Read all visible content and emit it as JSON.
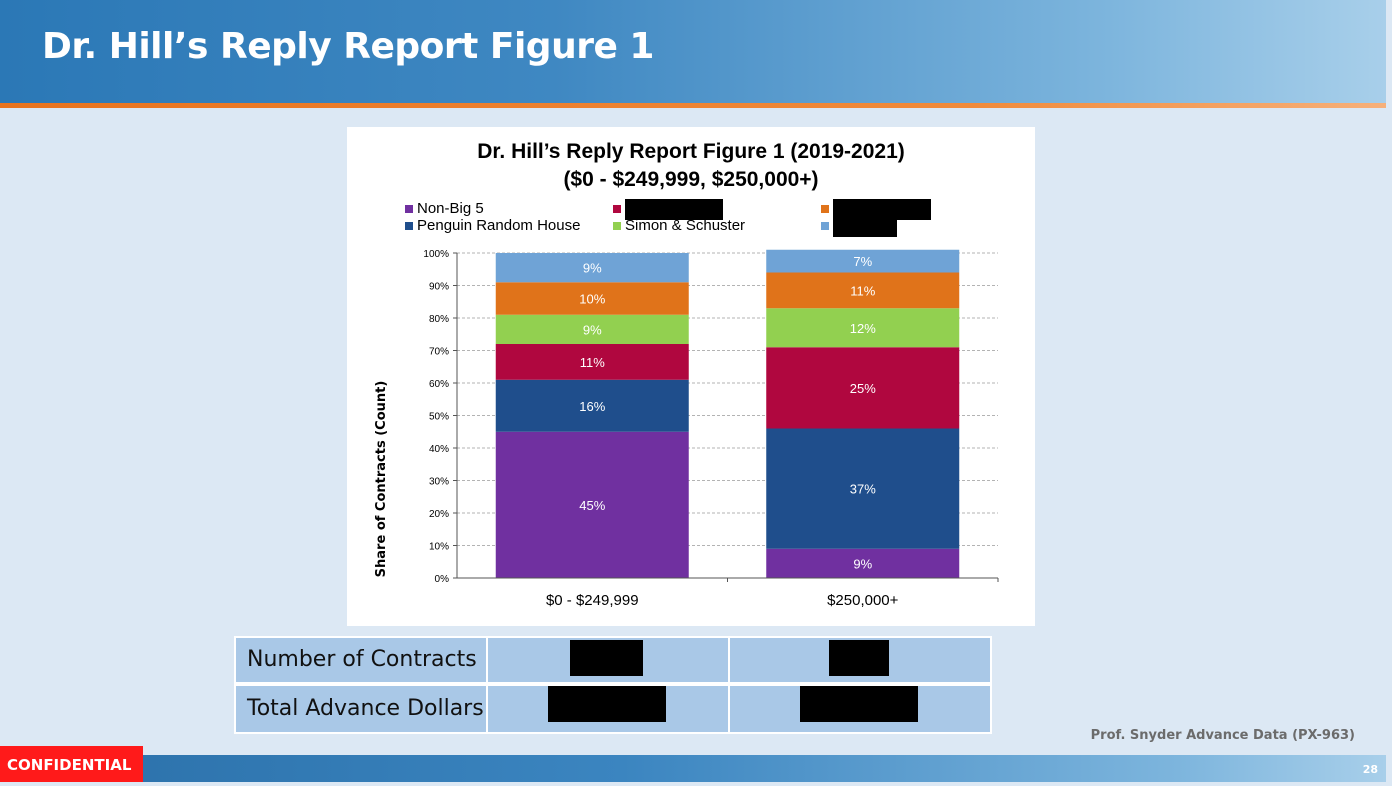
{
  "slide": {
    "title": "Dr. Hill’s Reply Report Figure 1",
    "source": "Prof. Snyder Advance Data (PX-963)",
    "confidential_label": "CONFIDENTIAL",
    "page_number": "28"
  },
  "chart_data": {
    "type": "bar",
    "stacked": true,
    "title_line1": "Dr. Hill’s Reply Report Figure 1 (2019-2021)",
    "title_line2": "($0 - $249,999, $250,000+)",
    "ylabel": "Share of Contracts (Count)",
    "xlabel": "",
    "ylim": [
      0,
      100
    ],
    "y_ticks": [
      "0%",
      "10%",
      "20%",
      "30%",
      "40%",
      "50%",
      "60%",
      "70%",
      "80%",
      "90%",
      "100%"
    ],
    "grid": true,
    "legend_position": "top",
    "categories": [
      "$0 - $249,999",
      "$250,000+"
    ],
    "series": [
      {
        "name": "Non-Big 5",
        "color": "#7030a0",
        "values": [
          45,
          9
        ],
        "labels": [
          "45%",
          "9%"
        ],
        "redacted": false
      },
      {
        "name": "Penguin Random House",
        "color": "#1f4e8c",
        "values": [
          16,
          37
        ],
        "labels": [
          "16%",
          "37%"
        ],
        "redacted": false
      },
      {
        "name": "",
        "color": "#b0073f",
        "values": [
          11,
          25
        ],
        "labels": [
          "11%",
          "25%"
        ],
        "redacted": true
      },
      {
        "name": "Simon & Schuster",
        "color": "#92d050",
        "values": [
          9,
          12
        ],
        "labels": [
          "9%",
          "12%"
        ],
        "redacted": false
      },
      {
        "name": "",
        "color": "#e0731a",
        "values": [
          10,
          11
        ],
        "labels": [
          "10%",
          "11%"
        ],
        "redacted": true
      },
      {
        "name": "",
        "color": "#6fa3d6",
        "values": [
          9,
          7
        ],
        "labels": [
          "9%",
          "7%"
        ],
        "redacted": true
      }
    ]
  },
  "table": {
    "rows": [
      {
        "label": "Number of Contracts"
      },
      {
        "label": "Total Advance Dollars"
      }
    ]
  }
}
